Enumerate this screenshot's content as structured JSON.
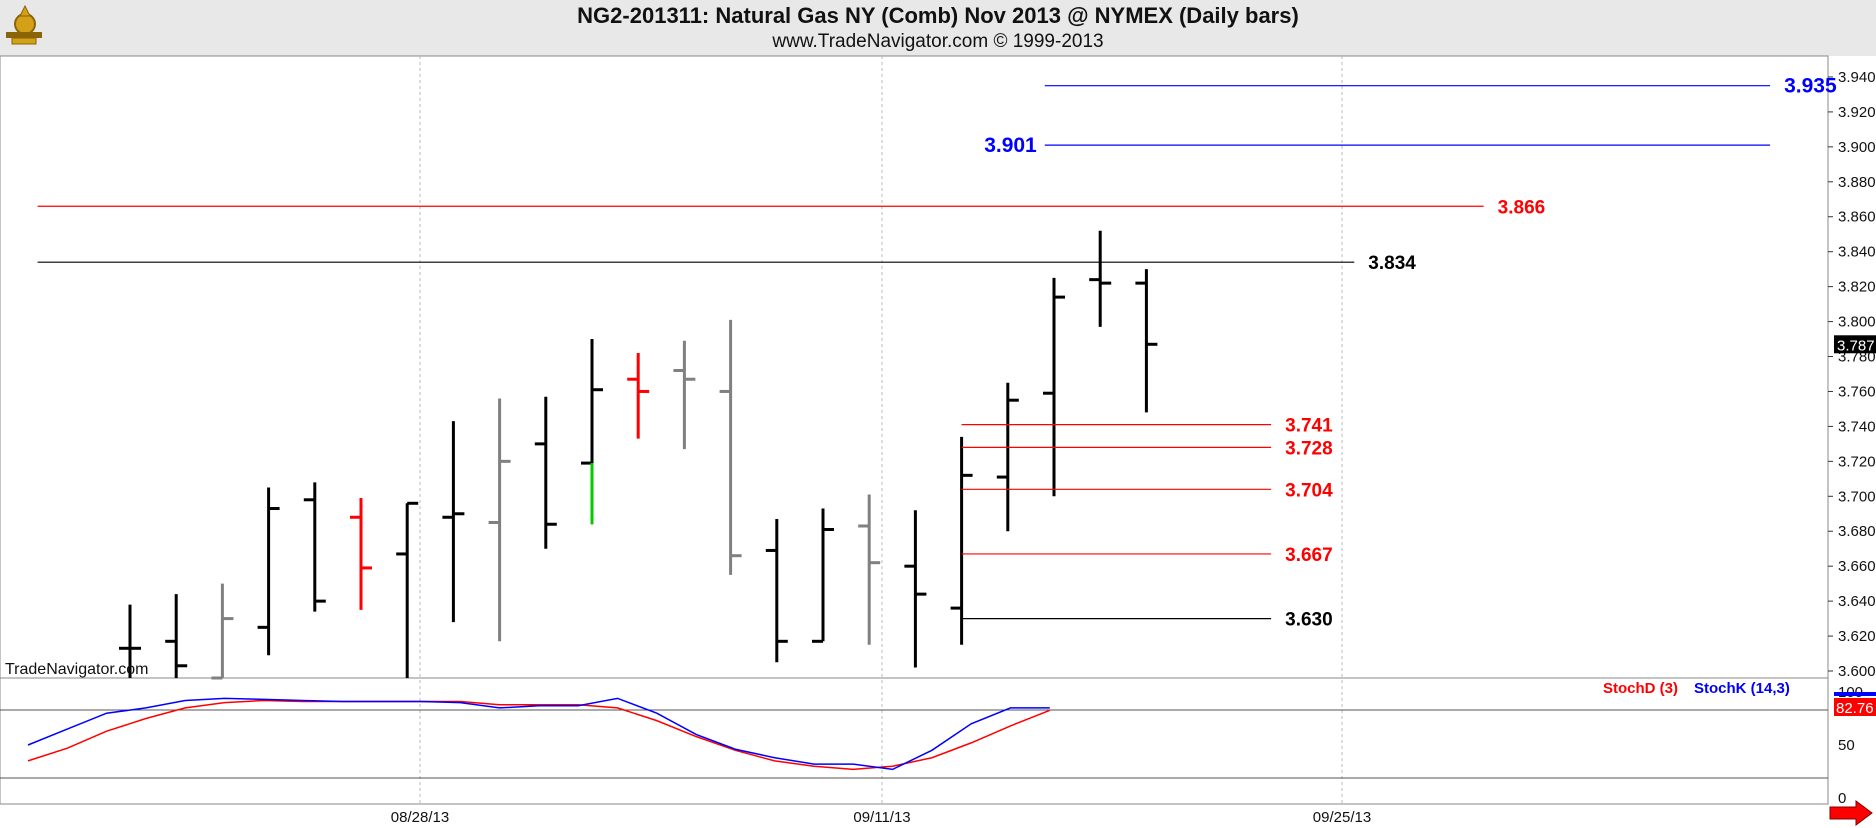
{
  "header": {
    "title": "NG2-201311:  Natural Gas NY (Comb) Nov 2013 @ NYMEX  (Daily bars)",
    "subtitle": "www.TradeNavigator.com © 1999-2013",
    "watermark": "TradeNavigator.com"
  },
  "colors": {
    "background": "#ffffff",
    "header_bg": "#e8e8e8",
    "up_bar": "#000000",
    "gray_bar": "#808080",
    "red_bar": "#ff0000",
    "green_segment": "#00cc00",
    "blue_level": "#0000ff",
    "red_level": "#ff0000",
    "black_level": "#000000",
    "stoch_d": "#ff0000",
    "stoch_k": "#0000ff"
  },
  "chart_data": [
    {
      "type": "ohlc",
      "ylim": [
        3.596,
        3.952
      ],
      "yticks": [
        "3.600",
        "3.620",
        "3.640",
        "3.660",
        "3.680",
        "3.700",
        "3.720",
        "3.740",
        "3.760",
        "3.780",
        "3.800",
        "3.820",
        "3.840",
        "3.860",
        "3.880",
        "3.900",
        "3.920",
        "3.940"
      ],
      "x_labels": [
        "08/28/13",
        "09/11/13",
        "09/25/13"
      ],
      "last_price": "3.787",
      "bars": [
        {
          "o": 3.613,
          "h": 3.638,
          "l": 3.596,
          "c": 3.613,
          "color": "black"
        },
        {
          "o": 3.617,
          "h": 3.644,
          "l": 3.596,
          "c": 3.603,
          "color": "black"
        },
        {
          "o": 3.596,
          "h": 3.65,
          "l": 3.596,
          "c": 3.63,
          "color": "gray"
        },
        {
          "o": 3.625,
          "h": 3.705,
          "l": 3.609,
          "c": 3.693,
          "color": "black"
        },
        {
          "o": 3.698,
          "h": 3.708,
          "l": 3.634,
          "c": 3.64,
          "color": "black"
        },
        {
          "o": 3.688,
          "h": 3.699,
          "l": 3.635,
          "c": 3.659,
          "color": "red"
        },
        {
          "o": 3.667,
          "h": 3.696,
          "l": 3.596,
          "c": 3.696,
          "color": "black"
        },
        {
          "o": 3.688,
          "h": 3.743,
          "l": 3.628,
          "c": 3.69,
          "color": "black"
        },
        {
          "o": 3.685,
          "h": 3.756,
          "l": 3.617,
          "c": 3.72,
          "color": "gray"
        },
        {
          "o": 3.73,
          "h": 3.757,
          "l": 3.67,
          "c": 3.684,
          "color": "black"
        },
        {
          "o": 3.719,
          "h": 3.79,
          "l": 3.684,
          "c": 3.761,
          "color": "black",
          "green_low": 3.684,
          "green_high": 3.719
        },
        {
          "o": 3.767,
          "h": 3.782,
          "l": 3.733,
          "c": 3.76,
          "color": "red"
        },
        {
          "o": 3.772,
          "h": 3.789,
          "l": 3.727,
          "c": 3.767,
          "color": "gray"
        },
        {
          "o": 3.76,
          "h": 3.801,
          "l": 3.655,
          "c": 3.666,
          "color": "gray"
        },
        {
          "o": 3.669,
          "h": 3.687,
          "l": 3.605,
          "c": 3.617,
          "color": "black"
        },
        {
          "o": 3.617,
          "h": 3.693,
          "l": 3.617,
          "c": 3.681,
          "color": "black"
        },
        {
          "o": 3.683,
          "h": 3.701,
          "l": 3.615,
          "c": 3.662,
          "color": "gray"
        },
        {
          "o": 3.66,
          "h": 3.692,
          "l": 3.602,
          "c": 3.644,
          "color": "black"
        },
        {
          "o": 3.636,
          "h": 3.734,
          "l": 3.615,
          "c": 3.712,
          "color": "black"
        },
        {
          "o": 3.711,
          "h": 3.765,
          "l": 3.68,
          "c": 3.755,
          "color": "black"
        },
        {
          "o": 3.759,
          "h": 3.825,
          "l": 3.7,
          "c": 3.814,
          "color": "black"
        },
        {
          "o": 3.824,
          "h": 3.852,
          "l": 3.797,
          "c": 3.822,
          "color": "black"
        },
        {
          "o": 3.822,
          "h": 3.83,
          "l": 3.748,
          "c": 3.787,
          "color": "black"
        }
      ],
      "levels": [
        {
          "value": 3.935,
          "label": "3.935",
          "color": "blue",
          "from_bar": 19.8,
          "to_bar": 35.5
        },
        {
          "value": 3.901,
          "label": "3.901",
          "color": "blue",
          "from_bar": 19.8,
          "to_bar": 35.5,
          "label_side": "left"
        },
        {
          "value": 3.866,
          "label": "3.866",
          "color": "red",
          "from_bar": -2,
          "to_bar": 29.3
        },
        {
          "value": 3.834,
          "label": "3.834",
          "color": "black",
          "from_bar": -2,
          "to_bar": 26.5
        },
        {
          "value": 3.741,
          "label": "3.741",
          "color": "red",
          "from_bar": 18,
          "to_bar": 24.7
        },
        {
          "value": 3.728,
          "label": "3.728",
          "color": "red",
          "from_bar": 18,
          "to_bar": 24.7
        },
        {
          "value": 3.704,
          "label": "3.704",
          "color": "red",
          "from_bar": 18,
          "to_bar": 24.7
        },
        {
          "value": 3.667,
          "label": "3.667",
          "color": "red",
          "from_bar": 18,
          "to_bar": 24.7
        },
        {
          "value": 3.63,
          "label": "3.630",
          "color": "black",
          "from_bar": 18,
          "to_bar": 24.7
        }
      ]
    },
    {
      "type": "line",
      "ylim": [
        0,
        100
      ],
      "yticks": [
        "0",
        "50",
        "100"
      ],
      "legend": [
        "StochD (3)",
        "StochK (14,3)"
      ],
      "last_value": "82.76",
      "series": [
        {
          "name": "StochD (3)",
          "color": "red",
          "values": [
            35,
            47,
            63,
            75,
            85,
            90,
            92,
            91,
            91,
            91,
            91,
            91,
            88,
            88,
            88,
            85,
            73,
            58,
            45,
            35,
            30,
            27,
            30,
            38,
            52,
            68,
            82.76
          ]
        },
        {
          "name": "StochK (14,3)",
          "color": "blue",
          "values": [
            50,
            65,
            80,
            85,
            92,
            94,
            93,
            92,
            91,
            91,
            91,
            90,
            85,
            87,
            87,
            94,
            80,
            60,
            46,
            38,
            32,
            32,
            27,
            45,
            70,
            85,
            85
          ]
        }
      ]
    }
  ]
}
